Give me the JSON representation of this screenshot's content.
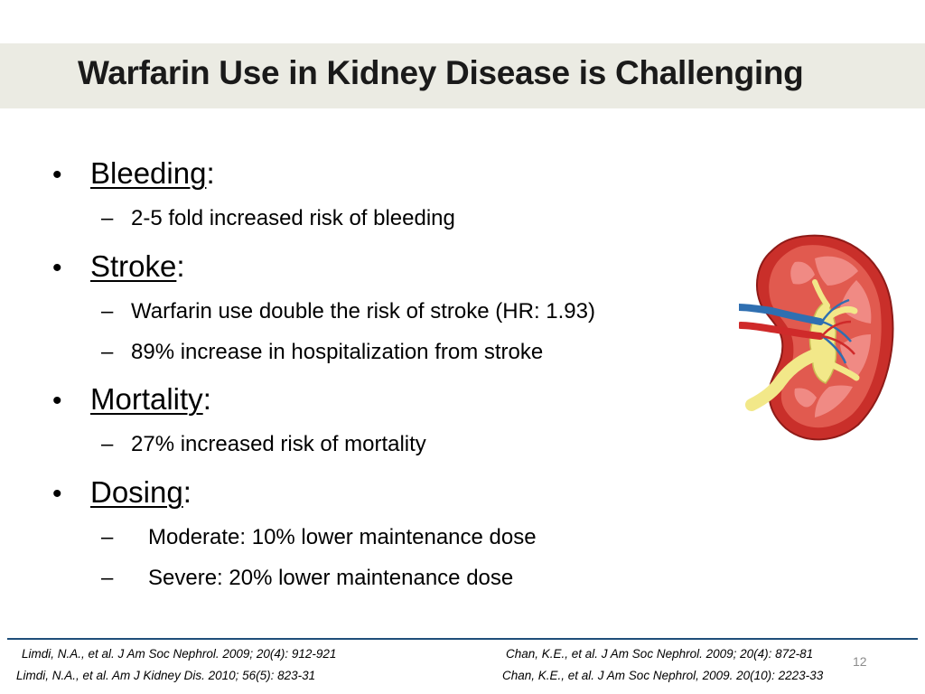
{
  "slide": {
    "title": "Warfarin Use in Kidney Disease is Challenging",
    "page_number": "12"
  },
  "bullets": [
    {
      "heading": "Bleeding",
      "suffix": ":",
      "subitems": [
        "2-5 fold increased risk of bleeding"
      ]
    },
    {
      "heading": "Stroke",
      "suffix": ":",
      "subitems": [
        "Warfarin use double the risk of stroke (HR: 1.93)",
        "89% increase in hospitalization from stroke"
      ]
    },
    {
      "heading": "Mortality",
      "suffix": ":",
      "subitems": [
        "27% increased risk of mortality"
      ]
    },
    {
      "heading": "Dosing",
      "suffix": ":",
      "subitems": [
        "Moderate: 10% lower maintenance dose",
        "Severe: 20% lower maintenance dose"
      ]
    }
  ],
  "symbols": {
    "bullet": "•",
    "dash": "–"
  },
  "references": {
    "left": [
      "Limdi, N.A., et al. J Am Soc Nephrol. 2009; 20(4): 912-921",
      "Limdi, N.A., et al. Am J Kidney Dis. 2010; 56(5): 823-31"
    ],
    "right": [
      "Chan, K.E., et al. J Am Soc Nephrol. 2009; 20(4): 872-81",
      "Chan, K.E., et al. J Am Soc Nephrol, 2009. 20(10): 2223-33"
    ]
  },
  "image": {
    "icon": "kidney-cross-section-illustration"
  },
  "colors": {
    "title_band": "#ebebe3",
    "footer_rule": "#1f4e79",
    "kidney_cortex": "#e15a4f",
    "kidney_pyramids": "#f08a84",
    "renal_pelvis": "#f2e889",
    "artery": "#cf2a2a",
    "vein": "#2f6fb1"
  }
}
